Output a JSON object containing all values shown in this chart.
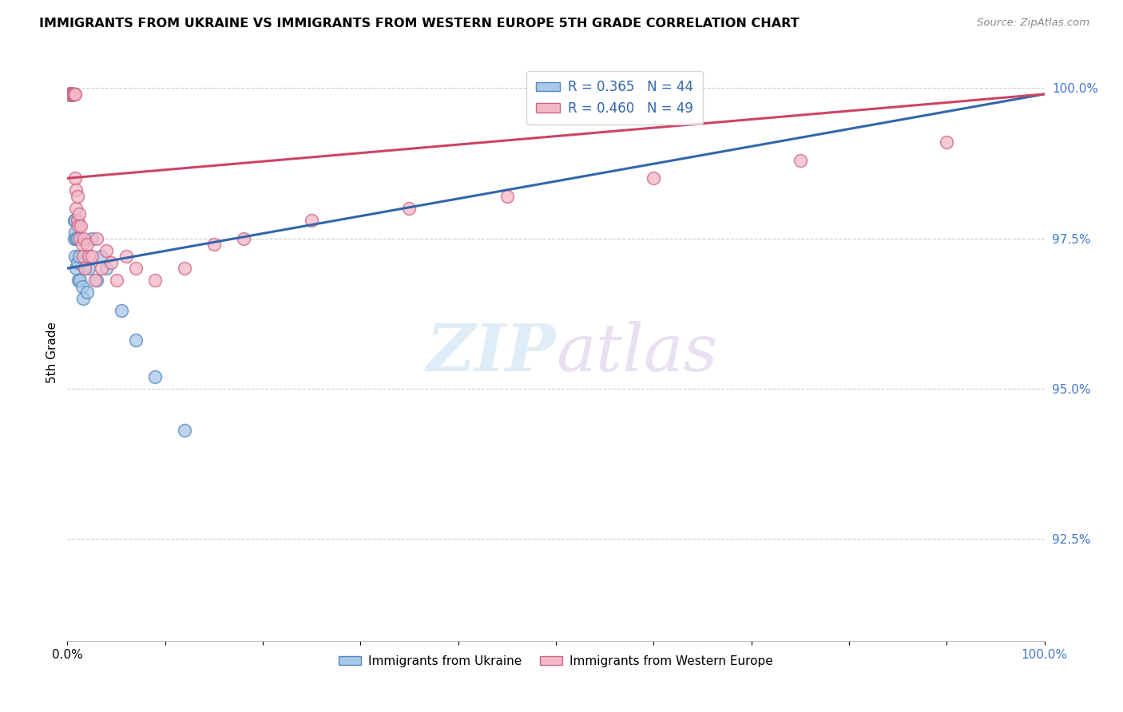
{
  "title": "IMMIGRANTS FROM UKRAINE VS IMMIGRANTS FROM WESTERN EUROPE 5TH GRADE CORRELATION CHART",
  "source": "Source: ZipAtlas.com",
  "ylabel": "5th Grade",
  "xlim": [
    0.0,
    1.0
  ],
  "ylim": [
    0.908,
    1.004
  ],
  "yticks": [
    0.925,
    0.95,
    0.975,
    1.0
  ],
  "ytick_labels": [
    "92.5%",
    "95.0%",
    "97.5%",
    "100.0%"
  ],
  "xticks": [
    0.0,
    0.1,
    0.2,
    0.3,
    0.4,
    0.5,
    0.6,
    0.7,
    0.8,
    0.9,
    1.0
  ],
  "blue_color": "#a8c8e8",
  "pink_color": "#f5b8c8",
  "blue_edge_color": "#5588bb",
  "pink_edge_color": "#cc6688",
  "blue_line_color": "#3366aa",
  "pink_line_color": "#cc4466",
  "legend_blue_label": "R = 0.365   N = 44",
  "legend_pink_label": "R = 0.460   N = 49",
  "legend_bottom_blue": "Immigrants from Ukraine",
  "legend_bottom_pink": "Immigrants from Western Europe",
  "watermark_zip": "ZIP",
  "watermark_atlas": "atlas",
  "blue_x": [
    0.001,
    0.001,
    0.002,
    0.002,
    0.002,
    0.003,
    0.003,
    0.003,
    0.003,
    0.004,
    0.004,
    0.004,
    0.005,
    0.005,
    0.005,
    0.006,
    0.006,
    0.006,
    0.007,
    0.007,
    0.007,
    0.008,
    0.008,
    0.008,
    0.009,
    0.009,
    0.01,
    0.01,
    0.011,
    0.012,
    0.013,
    0.015,
    0.016,
    0.018,
    0.02,
    0.022,
    0.025,
    0.03,
    0.035,
    0.04,
    0.055,
    0.07,
    0.09,
    0.12
  ],
  "blue_y": [
    0.999,
    0.999,
    0.999,
    0.999,
    0.999,
    0.999,
    0.999,
    0.999,
    0.999,
    0.999,
    0.999,
    0.999,
    0.999,
    0.999,
    0.999,
    0.999,
    0.999,
    0.999,
    0.999,
    0.978,
    0.975,
    0.978,
    0.976,
    0.972,
    0.975,
    0.97,
    0.975,
    0.971,
    0.968,
    0.972,
    0.968,
    0.967,
    0.965,
    0.97,
    0.966,
    0.97,
    0.975,
    0.968,
    0.972,
    0.97,
    0.963,
    0.958,
    0.952,
    0.943
  ],
  "pink_x": [
    0.001,
    0.001,
    0.002,
    0.002,
    0.003,
    0.003,
    0.003,
    0.004,
    0.004,
    0.005,
    0.005,
    0.006,
    0.006,
    0.007,
    0.008,
    0.008,
    0.009,
    0.009,
    0.01,
    0.01,
    0.011,
    0.012,
    0.013,
    0.014,
    0.015,
    0.016,
    0.017,
    0.018,
    0.02,
    0.022,
    0.025,
    0.028,
    0.03,
    0.035,
    0.04,
    0.045,
    0.05,
    0.06,
    0.07,
    0.09,
    0.12,
    0.15,
    0.18,
    0.25,
    0.35,
    0.45,
    0.6,
    0.75,
    0.9
  ],
  "pink_y": [
    0.999,
    0.999,
    0.999,
    0.999,
    0.999,
    0.999,
    0.999,
    0.999,
    0.999,
    0.999,
    0.999,
    0.999,
    0.999,
    0.999,
    0.999,
    0.985,
    0.983,
    0.98,
    0.982,
    0.978,
    0.977,
    0.979,
    0.975,
    0.977,
    0.974,
    0.972,
    0.975,
    0.97,
    0.974,
    0.972,
    0.972,
    0.968,
    0.975,
    0.97,
    0.973,
    0.971,
    0.968,
    0.972,
    0.97,
    0.968,
    0.97,
    0.974,
    0.975,
    0.978,
    0.98,
    0.982,
    0.985,
    0.988,
    0.991
  ],
  "blue_trend_x": [
    0.0,
    1.0
  ],
  "blue_trend_y": [
    0.97,
    0.999
  ],
  "pink_trend_x": [
    0.0,
    1.0
  ],
  "pink_trend_y": [
    0.985,
    0.999
  ]
}
